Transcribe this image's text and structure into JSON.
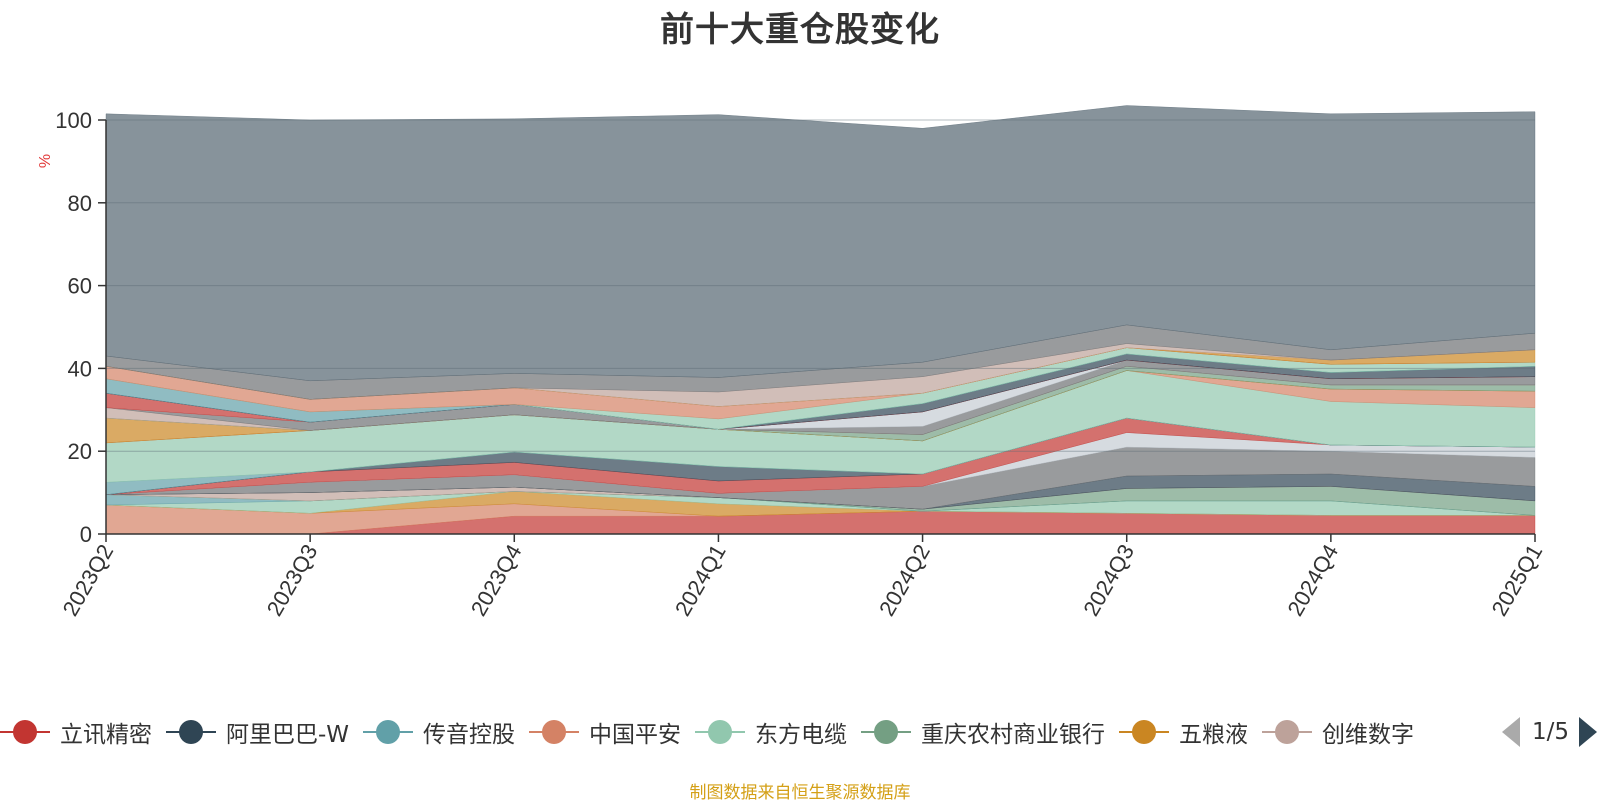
{
  "page": {
    "title": "前十大重仓股变化",
    "source_note": "制图数据来自恒生聚源数据库"
  },
  "legend": {
    "items": [
      {
        "label": "立讯精密",
        "color": "#c23531"
      },
      {
        "label": "阿里巴巴-W",
        "color": "#2f4554"
      },
      {
        "label": "传音控股",
        "color": "#61a0a8"
      },
      {
        "label": "中国平安",
        "color": "#d48265"
      },
      {
        "label": "东方电缆",
        "color": "#91c7ae"
      },
      {
        "label": "重庆农村商业银行",
        "color": "#749f83"
      },
      {
        "label": "五粮液",
        "color": "#ca8622"
      },
      {
        "label": "创维数字",
        "color": "#bda29a"
      }
    ],
    "page_indicator": "1/5"
  },
  "chart_data": {
    "type": "area",
    "stacked": true,
    "title": "前十大重仓股变化",
    "ylabel": "%",
    "xlabel": "",
    "ylim": [
      0,
      100
    ],
    "yticks": [
      0,
      20,
      40,
      60,
      80,
      100
    ],
    "grid": true,
    "categories": [
      "2023Q2",
      "2023Q3",
      "2023Q4",
      "2024Q1",
      "2024Q2",
      "2024Q3",
      "2024Q4",
      "2025Q1"
    ],
    "legend_position": "bottom",
    "series": [
      {
        "name": "立讯精密",
        "color": "#c23531",
        "values": [
          0.0,
          0.0,
          4.3,
          4.3,
          5.5,
          5.0,
          4.5,
          4.5
        ]
      },
      {
        "color": "#d48265",
        "values": [
          7.0,
          5.0,
          3.0,
          0.0,
          0.0,
          0.0,
          0.0,
          0.0
        ]
      },
      {
        "color": "#ca8622",
        "values": [
          0.0,
          0.0,
          3.0,
          3.0,
          0.0,
          0.0,
          0.0,
          0.0
        ]
      },
      {
        "color": "#91c7ae",
        "values": [
          0.0,
          3.0,
          0.0,
          1.5,
          0.0,
          3.0,
          3.5,
          0.0
        ]
      },
      {
        "color": "#61a0a8",
        "values": [
          2.5,
          0.0,
          0.0,
          0.0,
          0.0,
          0.0,
          0.0,
          0.0
        ]
      },
      {
        "color": "#749f83",
        "values": [
          0.0,
          0.0,
          0.0,
          0.0,
          0.5,
          3.0,
          3.5,
          3.5
        ]
      },
      {
        "color": "#bda29a",
        "values": [
          0.0,
          2.0,
          1.0,
          0.0,
          0.0,
          0.0,
          0.0,
          0.0
        ]
      },
      {
        "color": "#2f4554",
        "values": [
          0.0,
          0.0,
          0.0,
          0.0,
          0.0,
          3.0,
          3.0,
          3.5
        ]
      },
      {
        "color": "#6e7074",
        "values": [
          0.0,
          2.5,
          3.0,
          1.0,
          5.5,
          7.0,
          5.5,
          7.0
        ]
      },
      {
        "color": "#c4ccd3",
        "values": [
          0.0,
          0.0,
          0.0,
          0.0,
          0.0,
          3.5,
          1.5,
          2.5
        ]
      },
      {
        "color": "#c23531",
        "values": [
          0.0,
          2.5,
          3.0,
          3.0,
          3.0,
          3.5,
          0.0,
          0.0
        ]
      },
      {
        "color": "#2f4554",
        "values": [
          0.0,
          0.0,
          2.5,
          3.5,
          0.0,
          0.0,
          0.0,
          0.0
        ]
      },
      {
        "color": "#61a0a8",
        "values": [
          3.0,
          0.0,
          0.0,
          0.0,
          0.0,
          0.0,
          0.0,
          0.0
        ]
      },
      {
        "color": "#91c7ae",
        "values": [
          9.5,
          10.0,
          9.0,
          9.0,
          8.0,
          11.5,
          10.5,
          9.5
        ]
      },
      {
        "color": "#d48265",
        "values": [
          0.0,
          0.0,
          0.0,
          0.0,
          0.0,
          0.0,
          3.0,
          4.0
        ]
      },
      {
        "color": "#ca8622",
        "values": [
          6.0,
          0.0,
          0.0,
          0.0,
          0.0,
          0.0,
          0.0,
          0.0
        ]
      },
      {
        "color": "#749f83",
        "values": [
          0.0,
          0.0,
          0.0,
          0.0,
          1.5,
          1.0,
          1.0,
          1.5
        ]
      },
      {
        "color": "#bda29a",
        "values": [
          2.5,
          0.0,
          0.0,
          0.0,
          0.0,
          0.0,
          0.0,
          0.0
        ]
      },
      {
        "color": "#6e7074",
        "values": [
          0.0,
          2.0,
          2.5,
          0.0,
          2.0,
          1.5,
          1.5,
          2.0
        ]
      },
      {
        "color": "#c4ccd3",
        "values": [
          0.0,
          0.0,
          0.0,
          0.0,
          3.5,
          0.0,
          0.0,
          0.0
        ]
      },
      {
        "color": "#c23531",
        "values": [
          3.5,
          0.0,
          0.0,
          0.0,
          0.0,
          0.0,
          0.0,
          0.0
        ]
      },
      {
        "color": "#2f4554",
        "values": [
          0.0,
          0.0,
          0.0,
          0.0,
          2.0,
          1.5,
          1.5,
          2.5
        ]
      },
      {
        "color": "#61a0a8",
        "values": [
          3.5,
          2.5,
          0.0,
          0.0,
          0.0,
          0.0,
          0.0,
          0.0
        ]
      },
      {
        "color": "#91c7ae",
        "values": [
          0.0,
          0.0,
          0.0,
          2.5,
          2.5,
          1.5,
          2.0,
          1.0
        ]
      },
      {
        "color": "#d48265",
        "values": [
          3.0,
          3.0,
          4.0,
          3.0,
          0.0,
          0.0,
          0.0,
          0.0
        ]
      },
      {
        "color": "#ca8622",
        "values": [
          0.0,
          0.0,
          0.0,
          0.0,
          0.0,
          0.0,
          1.0,
          3.0
        ]
      },
      {
        "color": "#bda29a",
        "values": [
          0.0,
          0.0,
          0.0,
          3.5,
          4.0,
          1.0,
          0.0,
          0.0
        ]
      },
      {
        "color": "#6e7074",
        "values": [
          2.5,
          4.5,
          3.5,
          3.5,
          3.5,
          4.5,
          2.5,
          4.0
        ]
      },
      {
        "color": "#546570",
        "values": [
          58.5,
          63.0,
          61.5,
          63.5,
          56.5,
          53.0,
          57.0,
          53.5
        ]
      }
    ]
  }
}
